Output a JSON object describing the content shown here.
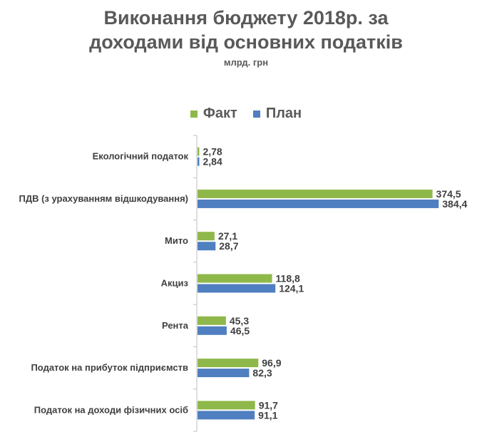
{
  "title_line1": "Виконання бюджету 2018р. за",
  "title_line2": "доходами від основних податків",
  "subtitle": "млрд. грн",
  "legend": [
    {
      "label": "Факт",
      "color": "#8fb84a"
    },
    {
      "label": "План",
      "color": "#4f7fc0"
    }
  ],
  "chart_data": {
    "type": "bar",
    "orientation": "horizontal",
    "title": "Виконання бюджету 2018р. за доходами від основних податків",
    "subtitle": "млрд. грн",
    "categories": [
      "Екологічний податок",
      "ПДВ (з урахуванням відшкодування)",
      "Мито",
      "Акциз",
      "Рента",
      "Податок на прибуток підприємств",
      "Податок на доходи фізичних осіб"
    ],
    "series": [
      {
        "name": "Факт",
        "color": "#8fb84a",
        "values": [
          2.78,
          374.5,
          27.1,
          118.8,
          45.3,
          96.9,
          91.7
        ],
        "labels": [
          "2,78",
          "374,5",
          "27,1",
          "118,8",
          "45,3",
          "96,9",
          "91,7"
        ]
      },
      {
        "name": "План",
        "color": "#4f7fc0",
        "values": [
          2.84,
          384.4,
          28.7,
          124.1,
          46.5,
          82.3,
          91.1
        ],
        "labels": [
          "2,84",
          "384,4",
          "28,7",
          "124,1",
          "46,5",
          "82,3",
          "91,1"
        ]
      }
    ],
    "xlim": [
      0,
      400
    ],
    "legend_position": "top",
    "grid": false
  }
}
